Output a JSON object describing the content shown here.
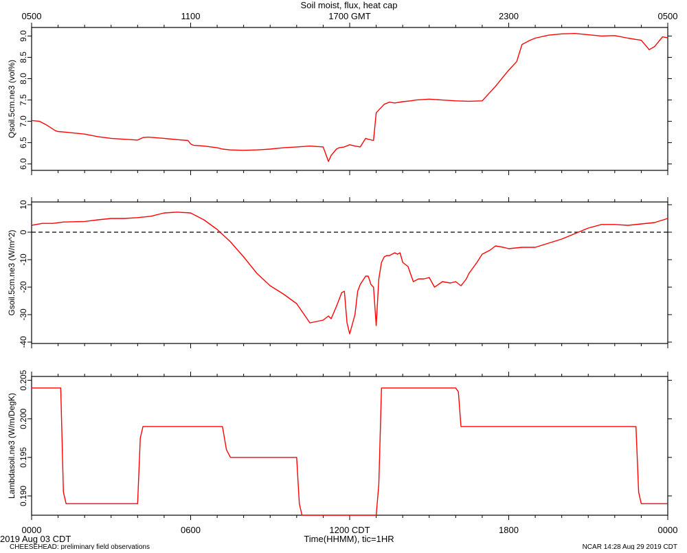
{
  "figure": {
    "title": "Soil moist, flux, heat cap",
    "top_axis_ticks": [
      "0500",
      "1100",
      "1700 GMT",
      "2300",
      "0500"
    ],
    "bottom_axis_ticks": [
      "0000",
      "0600",
      "1200 CDT",
      "1800",
      "0000"
    ],
    "xlabel": "Time(HHMM), tic=1HR",
    "date_label": "2019 Aug 03 CDT",
    "footer_left": "CHEESEHEAD: preliminary field observations",
    "footer_right": "NCAR 14:28 Aug 29 2019 CDT",
    "line_color": "#ff0000"
  },
  "chart_data": [
    {
      "type": "line",
      "ylabel": "Qsoil.5cm.ne3 (vol%)",
      "ylim": [
        5.85,
        9.2
      ],
      "yticks": [
        "6.0",
        "6.5",
        "7.0",
        "7.5",
        "8.0",
        "8.5",
        "9.0"
      ],
      "ytick_values": [
        6.0,
        6.5,
        7.0,
        7.5,
        8.0,
        8.5,
        9.0
      ],
      "x_hours": [
        0,
        0.3,
        0.6,
        0.9,
        1.0,
        1.2,
        2.0,
        2.5,
        3.0,
        3.5,
        4.0,
        4.2,
        4.4,
        5.0,
        5.5,
        5.9,
        6.0,
        6.1,
        6.5,
        7.0,
        7.2,
        7.5,
        8.0,
        8.5,
        9.0,
        9.5,
        10.0,
        10.5,
        11.0,
        11.2,
        11.3,
        11.5,
        11.6,
        11.8,
        12.0,
        12.2,
        12.4,
        12.6,
        12.7,
        12.9,
        13.0,
        13.3,
        13.5,
        13.7,
        14.0,
        14.3,
        14.5,
        15.0,
        15.5,
        16.0,
        16.5,
        17.0,
        17.5,
        17.8,
        18.0,
        18.3,
        18.5,
        18.8,
        19.0,
        19.5,
        20.0,
        20.5,
        21.0,
        21.5,
        22.0,
        22.5,
        22.8,
        23.0,
        23.3,
        23.5,
        23.8,
        24.0
      ],
      "values": [
        7.02,
        7.0,
        6.9,
        6.78,
        6.76,
        6.75,
        6.7,
        6.64,
        6.6,
        6.58,
        6.56,
        6.62,
        6.63,
        6.6,
        6.57,
        6.55,
        6.47,
        6.44,
        6.42,
        6.38,
        6.35,
        6.33,
        6.32,
        6.33,
        6.35,
        6.38,
        6.4,
        6.42,
        6.4,
        6.06,
        6.2,
        6.35,
        6.38,
        6.4,
        6.45,
        6.42,
        6.4,
        6.6,
        6.58,
        6.55,
        7.2,
        7.4,
        7.45,
        7.43,
        7.46,
        7.48,
        7.5,
        7.52,
        7.5,
        7.48,
        7.47,
        7.48,
        7.82,
        8.05,
        8.2,
        8.4,
        8.8,
        8.9,
        8.95,
        9.02,
        9.05,
        9.06,
        9.03,
        9.0,
        9.01,
        8.95,
        8.92,
        8.9,
        8.68,
        8.75,
        8.98,
        8.96
      ]
    },
    {
      "type": "line",
      "ylabel": "Gsoil.5cm.ne3 (W/m^2)",
      "ylim": [
        -40.5,
        11
      ],
      "yticks": [
        "10",
        "0",
        "-10",
        "-20",
        "-30",
        "-40"
      ],
      "ytick_values": [
        10,
        0,
        -10,
        -20,
        -30,
        -40
      ],
      "reference_line_y": 0,
      "x_hours": [
        0,
        0.4,
        0.8,
        1.2,
        2.0,
        2.5,
        3.0,
        3.5,
        4.0,
        4.5,
        5.0,
        5.5,
        6.0,
        6.5,
        7.0,
        7.5,
        8.0,
        8.5,
        9.0,
        9.5,
        10.0,
        10.5,
        11.0,
        11.2,
        11.3,
        11.5,
        11.7,
        11.8,
        11.9,
        12.0,
        12.2,
        12.3,
        12.4,
        12.5,
        12.6,
        12.7,
        12.8,
        12.9,
        13.0,
        13.1,
        13.2,
        13.3,
        13.4,
        13.5,
        13.7,
        13.8,
        13.9,
        14.0,
        14.2,
        14.4,
        14.6,
        14.8,
        15.0,
        15.2,
        15.5,
        15.8,
        16.0,
        16.2,
        16.4,
        16.5,
        16.8,
        17.0,
        17.3,
        17.5,
        17.8,
        18.0,
        18.5,
        19.0,
        19.5,
        20.0,
        20.5,
        21.0,
        21.5,
        22.0,
        22.5,
        23.0,
        23.5,
        24.0
      ],
      "values": [
        2.5,
        3.2,
        3.2,
        3.7,
        3.9,
        4.5,
        5.0,
        5.0,
        5.3,
        5.8,
        7.0,
        7.3,
        7.0,
        4.5,
        1.0,
        -3.5,
        -9.0,
        -15.0,
        -19.5,
        -22.5,
        -26.0,
        -33.0,
        -32.0,
        -30.5,
        -31.5,
        -27.0,
        -22.0,
        -21.5,
        -33.0,
        -37.0,
        -30.0,
        -21.5,
        -19.0,
        -17.5,
        -16.0,
        -16.0,
        -19.0,
        -20.0,
        -34.0,
        -17.0,
        -11.0,
        -9.0,
        -8.5,
        -8.5,
        -7.5,
        -8.0,
        -7.5,
        -11.0,
        -12.5,
        -18.0,
        -17.0,
        -17.0,
        -16.5,
        -20.0,
        -18.0,
        -18.5,
        -18.0,
        -19.5,
        -17.0,
        -15.0,
        -11.0,
        -8.0,
        -6.5,
        -5.0,
        -5.5,
        -6.0,
        -5.5,
        -5.5,
        -4.0,
        -2.5,
        -0.5,
        1.5,
        2.8,
        2.8,
        2.5,
        3.0,
        3.5,
        5.0
      ]
    },
    {
      "type": "line",
      "ylabel": "Lambdasoil.ne3 (W/m/DegK)",
      "ylim": [
        0.1875,
        0.2055
      ],
      "yticks": [
        "0.190",
        "0.195",
        "0.200",
        "0.205"
      ],
      "ytick_values": [
        0.19,
        0.195,
        0.2,
        0.205
      ],
      "x_hours": [
        0,
        1.1,
        1.2,
        1.3,
        4.0,
        4.1,
        4.2,
        7.2,
        7.35,
        7.5,
        10.0,
        10.1,
        10.2,
        13.0,
        13.1,
        13.2,
        16.0,
        16.1,
        16.2,
        22.8,
        22.9,
        23.0,
        24.0
      ],
      "values": [
        0.204,
        0.204,
        0.1905,
        0.189,
        0.189,
        0.1975,
        0.199,
        0.199,
        0.196,
        0.195,
        0.195,
        0.189,
        0.1875,
        0.1875,
        0.1915,
        0.204,
        0.204,
        0.2035,
        0.199,
        0.199,
        0.1905,
        0.189,
        0.189
      ]
    }
  ]
}
